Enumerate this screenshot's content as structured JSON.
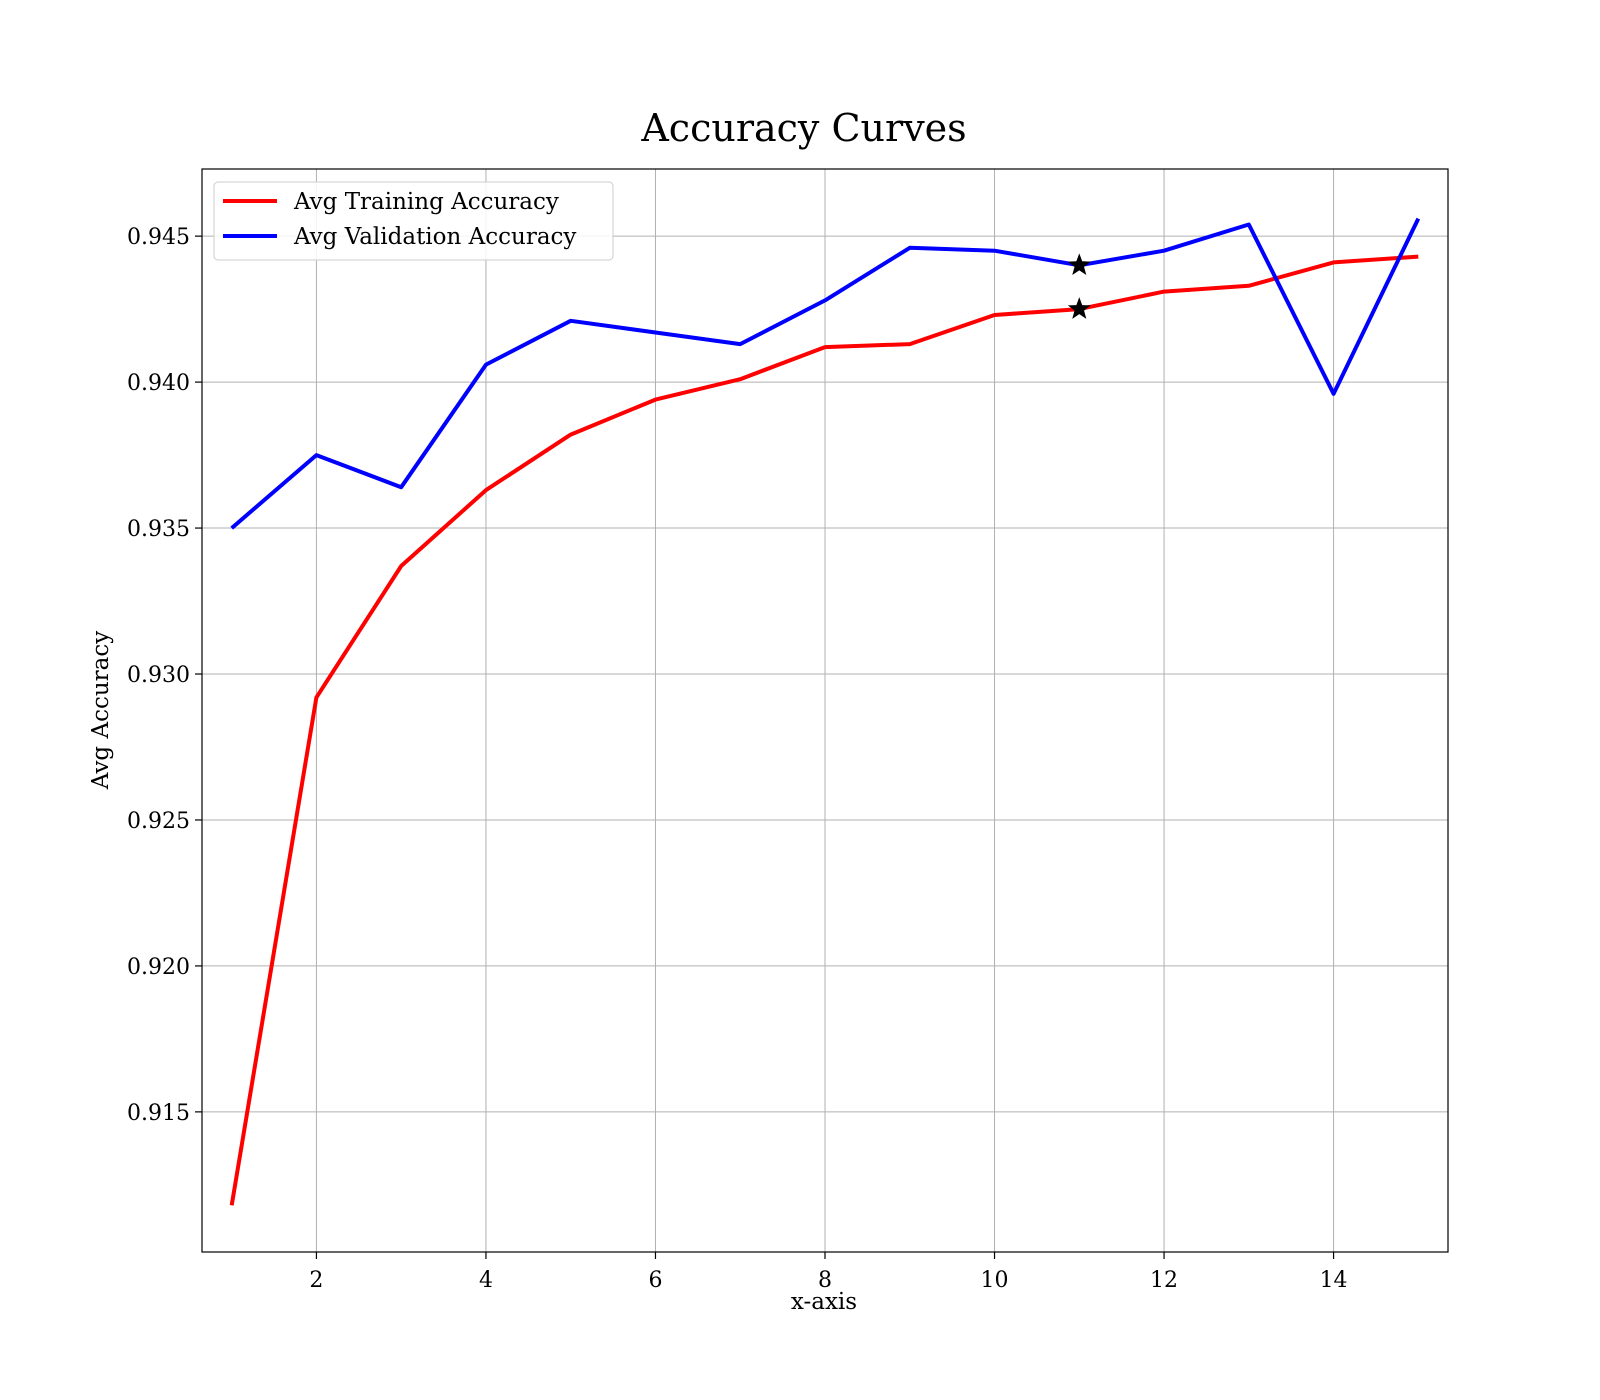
{
  "chart_data": {
    "type": "line",
    "title": "Accuracy Curves",
    "xlabel": "x-axis",
    "ylabel": "Avg Accuracy",
    "xlim": [
      0.65,
      15.35
    ],
    "ylim": [
      0.9102,
      0.9473
    ],
    "xticks": [
      2,
      4,
      6,
      8,
      10,
      12,
      14
    ],
    "xtick_labels": [
      "2",
      "4",
      "6",
      "8",
      "10",
      "12",
      "14"
    ],
    "yticks": [
      0.915,
      0.92,
      0.925,
      0.93,
      0.935,
      0.94,
      0.945
    ],
    "ytick_labels": [
      "0.915",
      "0.920",
      "0.925",
      "0.930",
      "0.935",
      "0.940",
      "0.945"
    ],
    "grid": true,
    "legend_position": "top-left",
    "x": [
      1,
      2,
      3,
      4,
      5,
      6,
      7,
      8,
      9,
      10,
      11,
      12,
      13,
      14,
      15
    ],
    "series": [
      {
        "name": "Avg Training Accuracy",
        "color": "#ff0000",
        "values": [
          0.9118,
          0.9292,
          0.9337,
          0.9363,
          0.9382,
          0.9394,
          0.9401,
          0.9412,
          0.9413,
          0.9423,
          0.9425,
          0.9431,
          0.9433,
          0.9441,
          0.9443
        ]
      },
      {
        "name": "Avg Validation Accuracy",
        "color": "#0000ff",
        "values": [
          0.935,
          0.9375,
          0.9364,
          0.9406,
          0.9421,
          0.9417,
          0.9413,
          0.9428,
          0.9446,
          0.9445,
          0.944,
          0.9445,
          0.9454,
          0.9396,
          0.9456
        ]
      }
    ],
    "markers": [
      {
        "x": 11,
        "y": 0.9425,
        "symbol": "star",
        "color": "#000000"
      },
      {
        "x": 11,
        "y": 0.944,
        "symbol": "star",
        "color": "#000000"
      }
    ]
  }
}
